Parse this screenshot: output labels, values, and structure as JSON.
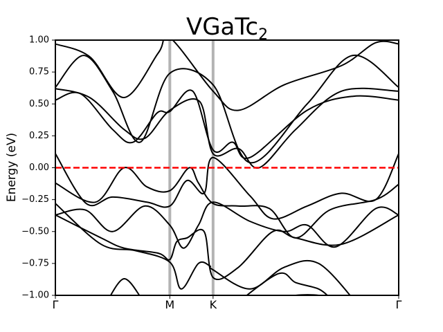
{
  "chart_data": {
    "type": "line",
    "title": "VGaTc",
    "title_subscript": "2",
    "xlabel": "",
    "ylabel": "Energy (eV)",
    "ylim": [
      -1.0,
      1.0
    ],
    "xlim": [
      0,
      3.0
    ],
    "grid": false,
    "legend": "none",
    "y_ticks": [
      "1.00",
      "0.75",
      "0.50",
      "0.25",
      "0.00",
      "−0.25",
      "−0.50",
      "−0.75",
      "−1.00"
    ],
    "y_tick_values": [
      1.0,
      0.75,
      0.5,
      0.25,
      0.0,
      -0.25,
      -0.5,
      -0.75,
      -1.0
    ],
    "high_symmetry_points": [
      {
        "label": "Γ",
        "x": 0.0
      },
      {
        "label": "M",
        "x": 1.0
      },
      {
        "label": "K",
        "x": 1.378
      },
      {
        "label": "Γ",
        "x": 3.0
      }
    ],
    "vertical_lines_at": [
      1.0,
      1.378
    ],
    "vertical_line_color": "#b3b3b3",
    "fermi_level": {
      "y": 0.0,
      "color": "#ff0000",
      "style": "dashed"
    },
    "band_color": "#000000",
    "series": [
      {
        "values": [
          [
            0,
            0.97
          ],
          [
            0.3,
            0.87
          ],
          [
            0.6,
            0.55
          ],
          [
            0.9,
            0.9
          ],
          [
            1.0,
            1.02
          ],
          [
            1.378,
            0.6
          ],
          [
            1.6,
            0.45
          ],
          [
            2.0,
            0.65
          ],
          [
            2.5,
            0.8
          ],
          [
            2.8,
            0.98
          ],
          [
            3.0,
            0.97
          ]
        ]
      },
      {
        "values": [
          [
            0,
            0.63
          ],
          [
            0.25,
            0.88
          ],
          [
            0.5,
            0.6
          ],
          [
            0.74,
            0.2
          ],
          [
            1.0,
            0.74
          ],
          [
            1.378,
            0.65
          ],
          [
            1.7,
            0.04
          ],
          [
            2.2,
            0.5
          ],
          [
            2.6,
            0.88
          ],
          [
            3.0,
            0.63
          ]
        ]
      },
      {
        "values": [
          [
            0,
            0.62
          ],
          [
            0.3,
            0.55
          ],
          [
            0.6,
            0.3
          ],
          [
            0.78,
            0.23
          ],
          [
            1.0,
            0.45
          ],
          [
            1.26,
            0.52
          ],
          [
            1.378,
            0.11
          ],
          [
            1.6,
            0.15
          ],
          [
            1.78,
            0.0
          ],
          [
            2.1,
            0.3
          ],
          [
            2.5,
            0.6
          ],
          [
            3.0,
            0.6
          ]
        ]
      },
      {
        "values": [
          [
            0,
            0.53
          ],
          [
            0.22,
            0.58
          ],
          [
            0.5,
            0.3
          ],
          [
            0.68,
            0.2
          ],
          [
            0.89,
            0.43
          ],
          [
            1.0,
            0.44
          ],
          [
            1.2,
            0.6
          ],
          [
            1.378,
            0.14
          ],
          [
            1.55,
            0.2
          ],
          [
            1.7,
            0.08
          ],
          [
            2.2,
            0.45
          ],
          [
            2.6,
            0.56
          ],
          [
            3.0,
            0.53
          ]
        ]
      },
      {
        "values": [
          [
            0,
            0.11
          ],
          [
            0.27,
            -0.28
          ],
          [
            0.5,
            -0.23
          ],
          [
            0.8,
            -0.27
          ],
          [
            1.0,
            -0.3
          ],
          [
            1.15,
            -0.1
          ],
          [
            1.3,
            -0.2
          ],
          [
            1.378,
            0.08
          ],
          [
            1.7,
            -0.22
          ],
          [
            1.9,
            -0.4
          ],
          [
            2.2,
            -0.3
          ],
          [
            2.5,
            -0.2
          ],
          [
            2.8,
            -0.25
          ],
          [
            3.0,
            0.11
          ]
        ]
      },
      {
        "values": [
          [
            0,
            -0.12
          ],
          [
            0.35,
            -0.27
          ],
          [
            0.6,
            0.0
          ],
          [
            0.8,
            -0.15
          ],
          [
            1.0,
            -0.18
          ],
          [
            1.17,
            0.0
          ],
          [
            1.25,
            -0.12
          ],
          [
            1.378,
            -0.28
          ],
          [
            1.6,
            -0.3
          ],
          [
            1.87,
            -0.32
          ],
          [
            2.1,
            -0.55
          ],
          [
            2.4,
            -0.33
          ],
          [
            2.8,
            -0.25
          ],
          [
            3.0,
            -0.13
          ]
        ]
      },
      {
        "values": [
          [
            0,
            -0.37
          ],
          [
            0.26,
            -0.33
          ],
          [
            0.5,
            -0.5
          ],
          [
            0.78,
            -0.3
          ],
          [
            1.0,
            -0.45
          ],
          [
            1.12,
            -0.63
          ],
          [
            1.25,
            -0.45
          ],
          [
            1.378,
            -0.27
          ],
          [
            1.7,
            -0.42
          ],
          [
            2.0,
            -0.5
          ],
          [
            2.2,
            -0.45
          ],
          [
            2.45,
            -0.62
          ],
          [
            2.8,
            -0.32
          ],
          [
            3.0,
            -0.37
          ]
        ]
      },
      {
        "values": [
          [
            0,
            -0.37
          ],
          [
            0.4,
            -0.55
          ],
          [
            0.6,
            -0.63
          ],
          [
            0.9,
            -0.67
          ],
          [
            1.0,
            -0.72
          ],
          [
            1.06,
            -0.58
          ],
          [
            1.15,
            -0.55
          ],
          [
            1.3,
            -0.5
          ],
          [
            1.378,
            -0.86
          ],
          [
            1.6,
            -0.78
          ],
          [
            1.9,
            -0.5
          ],
          [
            2.1,
            -0.55
          ],
          [
            2.5,
            -0.6
          ],
          [
            3.0,
            -0.37
          ]
        ]
      },
      {
        "values": [
          [
            0,
            -0.28
          ],
          [
            0.4,
            -0.6
          ],
          [
            0.7,
            -0.65
          ],
          [
            1.0,
            -0.74
          ],
          [
            1.1,
            -0.95
          ],
          [
            1.25,
            -0.75
          ],
          [
            1.35,
            -0.77
          ],
          [
            1.378,
            -0.8
          ],
          [
            1.7,
            -0.95
          ],
          [
            2.0,
            -0.78
          ],
          [
            2.3,
            -0.75
          ],
          [
            2.65,
            -1.08
          ]
        ]
      },
      {
        "values": [
          [
            0.45,
            -1.05
          ],
          [
            0.6,
            -0.87
          ],
          [
            0.75,
            -1.02
          ]
        ]
      },
      {
        "values": [
          [
            1.6,
            -1.05
          ],
          [
            1.95,
            -0.83
          ],
          [
            2.1,
            -0.9
          ],
          [
            2.3,
            -0.95
          ],
          [
            2.4,
            -1.02
          ]
        ]
      },
      {
        "values": [
          [
            1.95,
            -1.04
          ],
          [
            2.1,
            -1.0
          ],
          [
            2.3,
            -1.0
          ],
          [
            2.4,
            -1.04
          ]
        ]
      }
    ]
  }
}
